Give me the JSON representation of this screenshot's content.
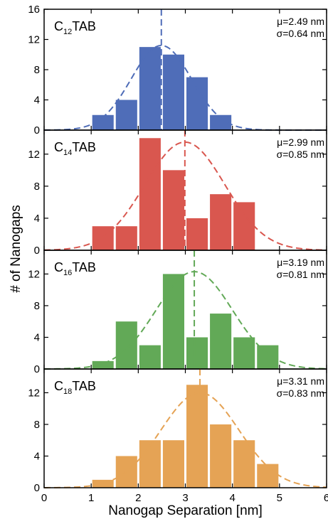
{
  "chart_data": {
    "type": "bar",
    "xlabel": "Nanogap Separation [nm]",
    "ylabel": "# of Nanogaps",
    "xlim": [
      0,
      6
    ],
    "xticks": [
      "0",
      "1",
      "2",
      "3",
      "4",
      "5",
      "6"
    ],
    "bin_width": 0.5,
    "panels": [
      {
        "label_prefix": "C",
        "label_sub": "12",
        "label_suffix": "TAB",
        "color": "#4f6db8",
        "mu": 2.49,
        "sigma": 0.64,
        "mu_text": "μ=2.49 nm",
        "sigma_text": "σ=0.64 nm",
        "ylim": [
          0,
          16
        ],
        "yticks": [
          "0",
          "4",
          "8",
          "12",
          "16"
        ],
        "bin_centers": [
          1.25,
          1.75,
          2.25,
          2.75,
          3.25,
          3.75
        ],
        "values": [
          2,
          4,
          11,
          10,
          7,
          2
        ],
        "fit_peak": 11.2
      },
      {
        "label_prefix": "C",
        "label_sub": "14",
        "label_suffix": "TAB",
        "color": "#d9574f",
        "mu": 2.99,
        "sigma": 0.85,
        "mu_text": "μ=2.99 nm",
        "sigma_text": "σ=0.85 nm",
        "ylim": [
          0,
          15
        ],
        "yticks": [
          "0",
          "4",
          "8",
          "12"
        ],
        "bin_centers": [
          1.25,
          1.75,
          2.25,
          2.75,
          3.25,
          3.75,
          4.25
        ],
        "values": [
          3,
          3,
          14,
          10,
          4,
          7,
          6
        ],
        "fit_peak": 13.5
      },
      {
        "label_prefix": "C",
        "label_sub": "16",
        "label_suffix": "TAB",
        "color": "#62a957",
        "mu": 3.19,
        "sigma": 0.81,
        "mu_text": "μ=3.19 nm",
        "sigma_text": "σ=0.81 nm",
        "ylim": [
          0,
          15
        ],
        "yticks": [
          "0",
          "4",
          "8",
          "12"
        ],
        "bin_centers": [
          1.25,
          1.75,
          2.25,
          2.75,
          3.25,
          3.75,
          4.25,
          4.75
        ],
        "values": [
          1,
          6,
          3,
          12,
          4,
          7,
          4,
          3
        ],
        "fit_peak": 12.3
      },
      {
        "label_prefix": "C",
        "label_sub": "18",
        "label_suffix": "TAB",
        "color": "#e5a355",
        "mu": 3.31,
        "sigma": 0.83,
        "mu_text": "μ=3.31 nm",
        "sigma_text": "σ=0.83 nm",
        "ylim": [
          0,
          15
        ],
        "yticks": [
          "0",
          "4",
          "8",
          "12"
        ],
        "bin_centers": [
          1.25,
          1.75,
          2.25,
          2.75,
          3.25,
          3.75,
          4.25,
          4.75
        ],
        "values": [
          1,
          4,
          6,
          6,
          13,
          8,
          6,
          3
        ],
        "fit_peak": 12.0
      }
    ]
  }
}
